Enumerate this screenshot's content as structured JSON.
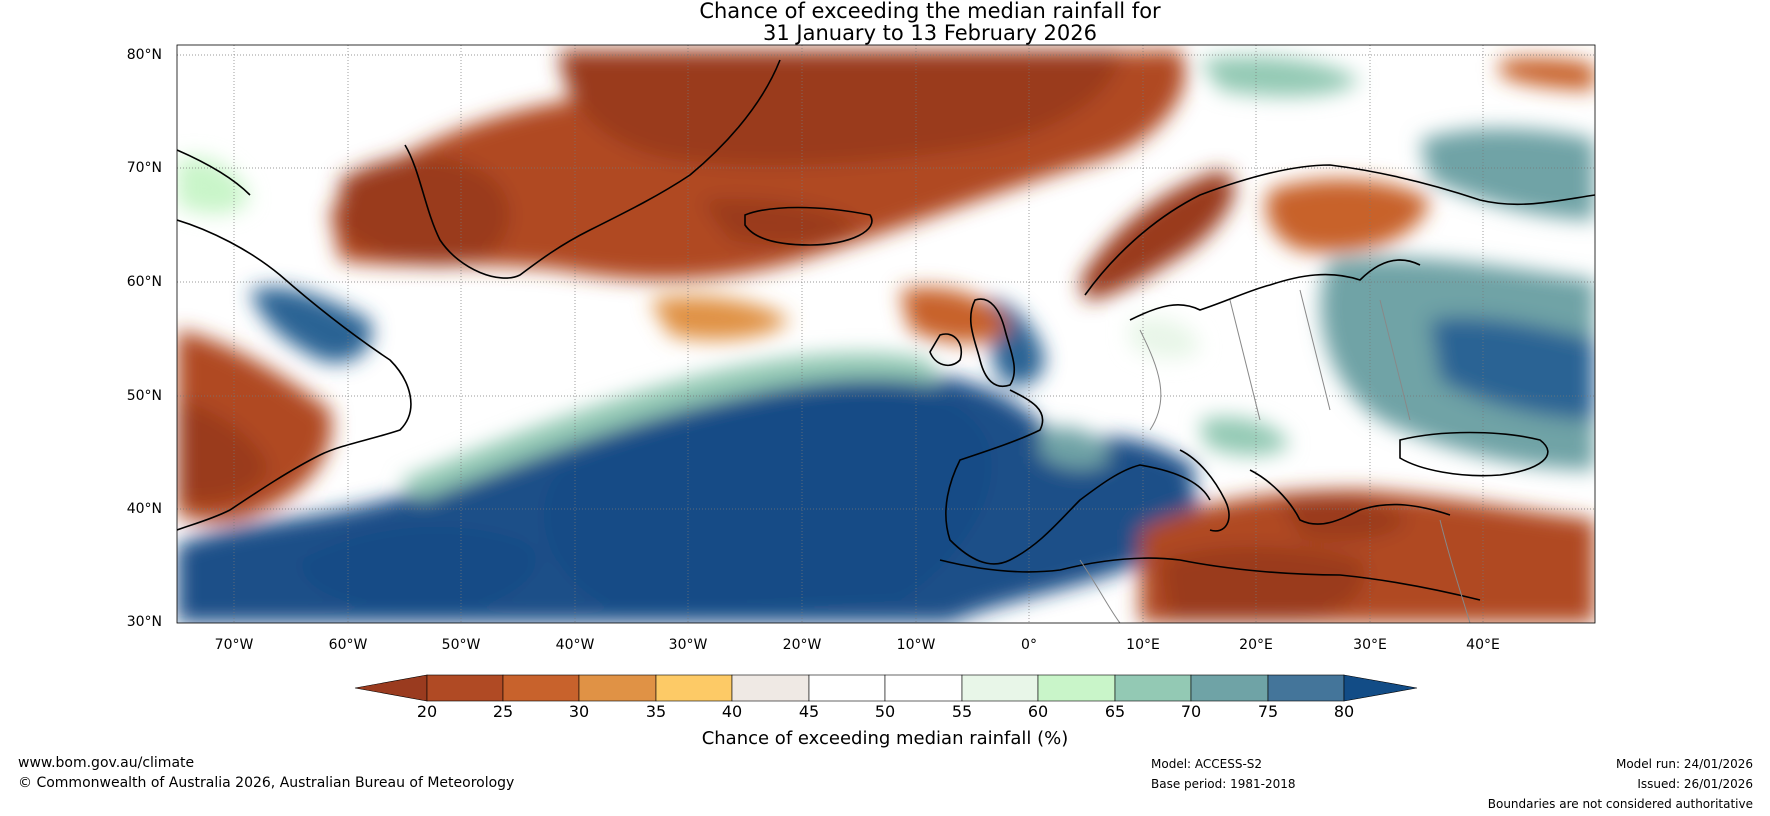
{
  "title": {
    "line1": "Chance of exceeding the median rainfall for",
    "line2": "31 January to 13 February 2026"
  },
  "map": {
    "lat_labels": [
      "80°N",
      "70°N",
      "60°N",
      "50°N",
      "40°N",
      "30°N"
    ],
    "lon_labels": [
      "70°W",
      "60°W",
      "50°W",
      "40°W",
      "30°W",
      "20°W",
      "10°W",
      "0°",
      "10°E",
      "20°E",
      "30°E",
      "40°E"
    ]
  },
  "colorbar": {
    "ticks": [
      "20",
      "25",
      "30",
      "35",
      "40",
      "45",
      "50",
      "55",
      "60",
      "65",
      "70",
      "75",
      "80"
    ],
    "colors": [
      "#9a3b1f",
      "#b04a24",
      "#c8622c",
      "#e09245",
      "#fdca66",
      "#efe9e4",
      "#ffffff",
      "#ffffff",
      "#e8f6e8",
      "#c9f5c9",
      "#93c9b4",
      "#6fa3a6",
      "#44759a",
      "#124c86"
    ],
    "label": "Chance of exceeding median rainfall (%)"
  },
  "footer": {
    "website": "www.bom.gov.au/climate",
    "copyright": "© Commonwealth of Australia 2026, Australian Bureau of Meteorology",
    "model": "Model: ACCESS-S2",
    "base_period": "Base period: 1981-2018",
    "model_run": "Model run: 24/01/2026",
    "issued": "Issued: 26/01/2026",
    "disclaimer": "Boundaries are not considered authoritative"
  }
}
